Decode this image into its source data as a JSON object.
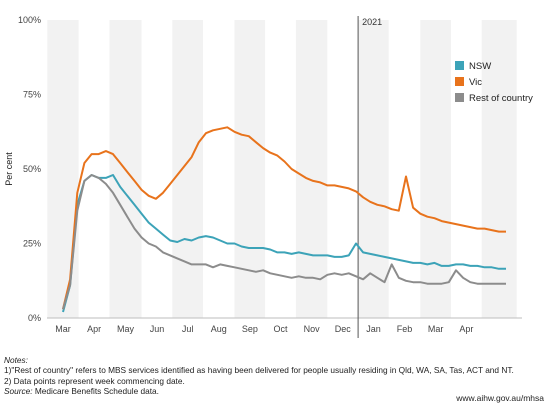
{
  "chart_data": {
    "type": "line",
    "title": "",
    "xlabel": "",
    "ylabel": "Per cent",
    "ylim": [
      0,
      100
    ],
    "yticks": [
      0,
      25,
      50,
      75,
      100
    ],
    "ytick_labels": [
      "0%",
      "25%",
      "50%",
      "75%",
      "100%"
    ],
    "month_labels": [
      "Mar",
      "Apr",
      "May",
      "Jun",
      "Jul",
      "Aug",
      "Sep",
      "Oct",
      "Nov",
      "Dec",
      "Jan",
      "Feb",
      "Mar",
      "Apr"
    ],
    "year_marker": {
      "label": "2021",
      "at_week": 41.3
    },
    "grid": false,
    "alternating_month_bands": true,
    "legend_position": "right",
    "x": [
      0,
      1,
      2,
      3,
      4,
      5,
      6,
      7,
      8,
      9,
      10,
      11,
      12,
      13,
      14,
      15,
      16,
      17,
      18,
      19,
      20,
      21,
      22,
      23,
      24,
      25,
      26,
      27,
      28,
      29,
      30,
      31,
      32,
      33,
      34,
      35,
      36,
      37,
      38,
      39,
      40,
      41,
      42,
      43,
      44,
      45,
      46,
      47,
      48,
      49,
      50,
      51,
      52,
      53,
      54,
      55,
      56,
      57,
      58,
      59,
      60,
      61,
      62
    ],
    "series": [
      {
        "name": "NSW",
        "color": "#3ca3b8",
        "values": [
          2,
          11,
          38,
          46,
          48,
          47,
          47,
          48,
          44,
          41,
          38,
          35,
          32,
          30,
          28,
          26,
          25.5,
          26.5,
          26,
          27,
          27.5,
          27,
          26,
          25,
          25,
          24,
          23.5,
          23.5,
          23.5,
          23,
          22,
          22,
          21.5,
          22,
          21.5,
          21,
          21,
          21,
          20.5,
          20.5,
          21,
          25,
          22,
          21.5,
          21,
          20.5,
          20,
          19.5,
          19,
          18.5,
          18.5,
          18,
          18.5,
          17.5,
          17.5,
          18,
          18,
          17.5,
          17.5,
          17,
          17,
          16.5,
          16.5
        ]
      },
      {
        "name": "Vic",
        "color": "#e8731c",
        "values": [
          3,
          13,
          42,
          52,
          55,
          55,
          56,
          55,
          52,
          49,
          46,
          43,
          41,
          40,
          42,
          45,
          48,
          51,
          54,
          59,
          62,
          63,
          63.5,
          64,
          62.5,
          61.5,
          61,
          59,
          57,
          55.5,
          54.5,
          52.5,
          50,
          48.5,
          47,
          46,
          45.5,
          44.5,
          44.5,
          44,
          43.5,
          42.5,
          40.5,
          39,
          38,
          37.5,
          36.5,
          36,
          47.5,
          37,
          35,
          34,
          33.5,
          32.5,
          32,
          31.5,
          31,
          30.5,
          30,
          30,
          29.5,
          29,
          29
        ]
      },
      {
        "name": "Rest of country",
        "color": "#8c8c8c",
        "values": [
          3,
          11,
          36,
          46,
          48,
          47,
          45,
          42,
          38,
          34,
          30,
          27,
          25,
          24,
          22,
          21,
          20,
          19,
          18,
          18,
          18,
          17,
          18,
          17.5,
          17,
          16.5,
          16,
          15.5,
          16,
          15,
          14.5,
          14,
          13.5,
          14,
          13.5,
          13.5,
          13,
          14.5,
          15,
          14.5,
          15,
          14,
          13,
          15,
          13.5,
          12,
          18,
          13.5,
          12.5,
          12,
          12,
          11.5,
          11.5,
          11.5,
          12,
          16,
          13.5,
          12,
          11.5,
          11.5,
          11.5,
          11.5,
          11.5
        ]
      }
    ]
  },
  "notes": {
    "heading": "Notes:",
    "line1": "1)\"Rest of country\" refers to MBS services identified as having been delivered for people usually residing in Qld, WA, SA, Tas, ACT and NT.",
    "line2": "2) Data points represent week commencing date.",
    "source_label": "Source:",
    "source_text": " Medicare Benefits Schedule data."
  },
  "source_url": "www.aihw.gov.au/mhsa"
}
